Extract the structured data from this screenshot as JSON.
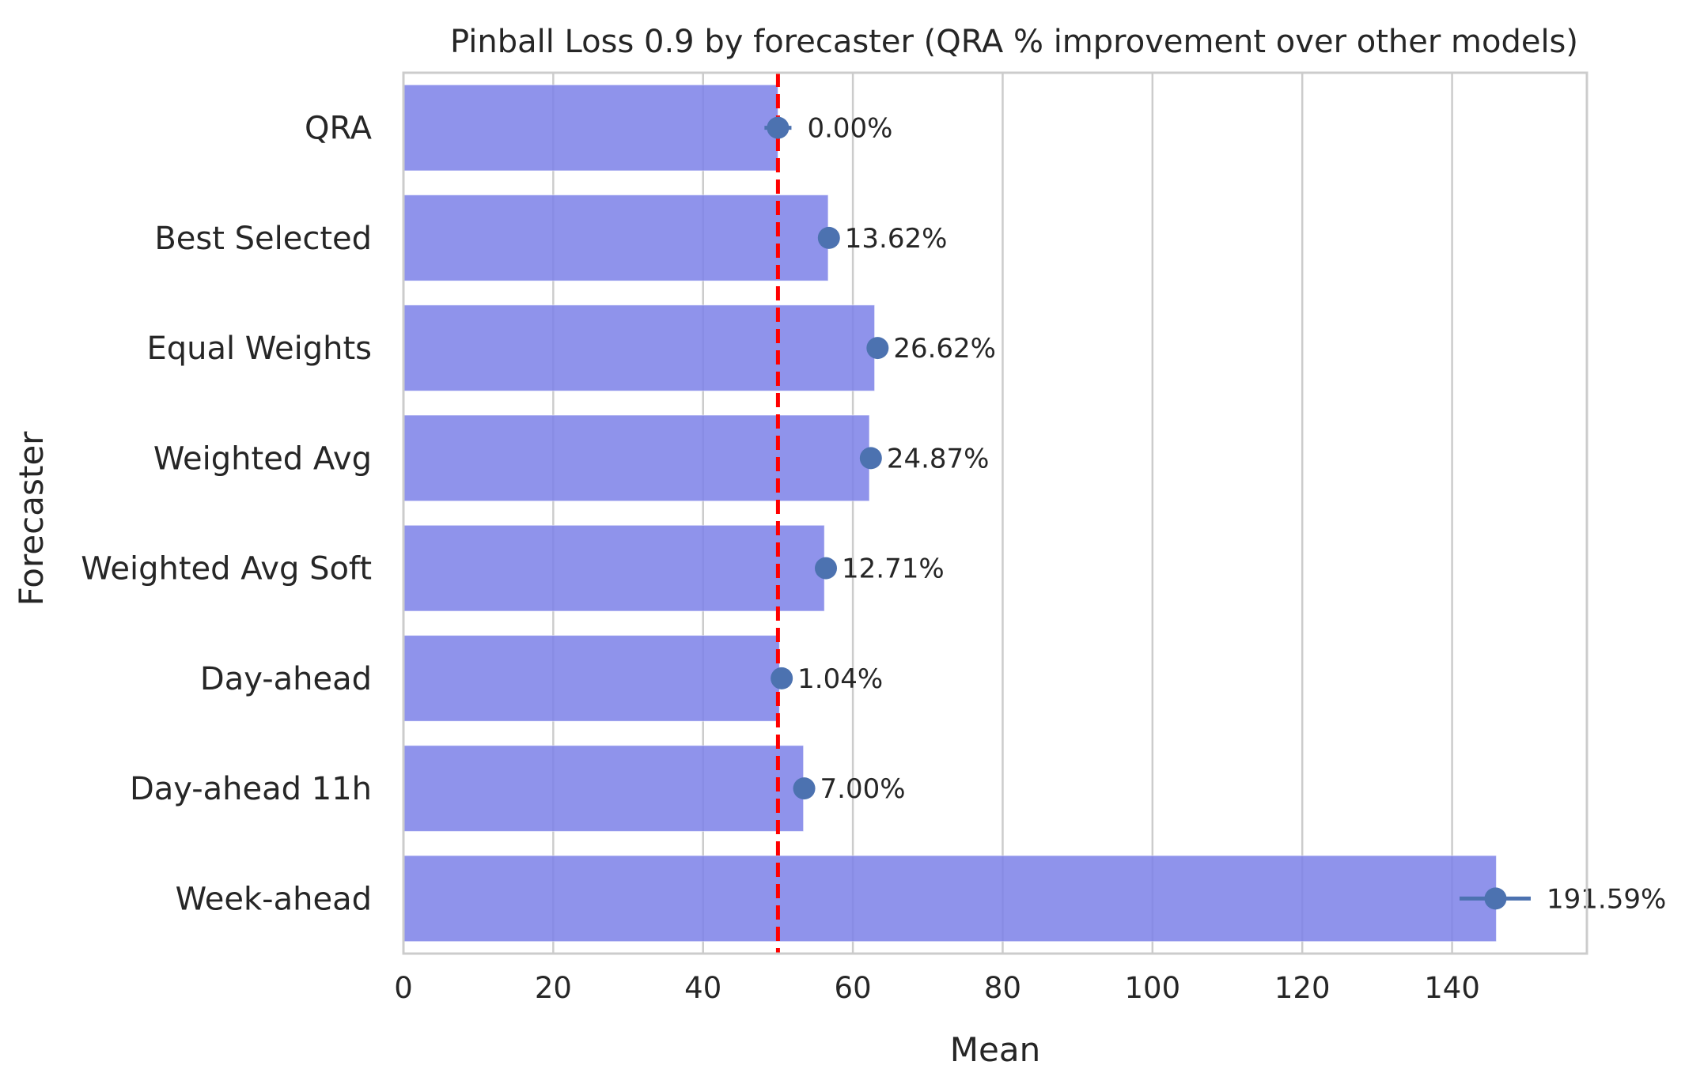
{
  "chart_data": {
    "type": "bar",
    "orientation": "horizontal",
    "title": "Pinball Loss 0.9 by forecaster (QRA % improvement over other models)",
    "xlabel": "Mean",
    "ylabel": "Forecaster",
    "xlim": [
      0,
      158
    ],
    "xticks": [
      0,
      20,
      40,
      60,
      80,
      100,
      120,
      140
    ],
    "xtick_labels": [
      "0",
      "20",
      "40",
      "60",
      "80",
      "100",
      "120",
      "140"
    ],
    "grid": "vertical",
    "categories": [
      "QRA",
      "Best Selected",
      "Equal Weights",
      "Weighted Avg",
      "Weighted Avg Soft",
      "Day-ahead",
      "Day-ahead 11h",
      "Week-ahead"
    ],
    "values": [
      50.0,
      56.7,
      62.9,
      62.2,
      56.2,
      50.2,
      53.4,
      145.9
    ],
    "point_estimates": [
      50.0,
      56.8,
      63.3,
      62.4,
      56.4,
      50.5,
      53.5,
      145.8
    ],
    "error_bars": [
      [
        48.2,
        51.8
      ],
      [
        56.8,
        56.8
      ],
      [
        63.3,
        63.3
      ],
      [
        62.4,
        62.4
      ],
      [
        56.4,
        56.4
      ],
      [
        50.5,
        50.5
      ],
      [
        53.5,
        53.5
      ],
      [
        141.0,
        150.5
      ]
    ],
    "annotations": [
      "0.00%",
      "13.62%",
      "26.62%",
      "24.87%",
      "12.71%",
      "1.04%",
      "7.00%",
      "191.59%"
    ],
    "reference_line": {
      "x": 50.0,
      "color": "#ff0000",
      "style": "dashed"
    },
    "colors": {
      "bar": "#7b80e8",
      "point": "#4c72b0",
      "grid": "#cccccc",
      "spine": "#cccccc"
    }
  }
}
